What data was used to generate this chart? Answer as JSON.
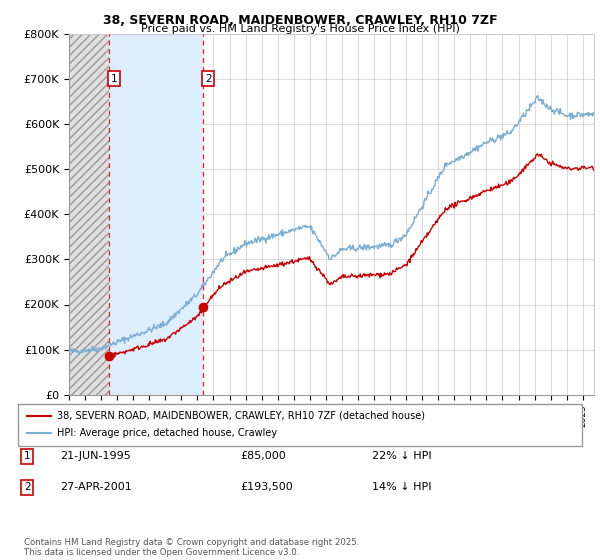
{
  "title1": "38, SEVERN ROAD, MAIDENBOWER, CRAWLEY, RH10 7ZF",
  "title2": "Price paid vs. HM Land Registry's House Price Index (HPI)",
  "legend_line1": "38, SEVERN ROAD, MAIDENBOWER, CRAWLEY, RH10 7ZF (detached house)",
  "legend_line2": "HPI: Average price, detached house, Crawley",
  "annotation1_date": "21-JUN-1995",
  "annotation1_price": "£85,000",
  "annotation1_hpi": "22% ↓ HPI",
  "annotation1_year": 1995.47,
  "annotation1_value": 85000,
  "annotation2_date": "27-APR-2001",
  "annotation2_price": "£193,500",
  "annotation2_hpi": "14% ↓ HPI",
  "annotation2_year": 2001.32,
  "annotation2_value": 193500,
  "red_line_color": "#cc0000",
  "blue_line_color": "#7aaed4",
  "dashed_red": "#ee2222",
  "hatch_facecolor": "#e0e0e0",
  "shade_color": "#ddeeff",
  "footer": "Contains HM Land Registry data © Crown copyright and database right 2025.\nThis data is licensed under the Open Government Licence v3.0.",
  "ylim": [
    0,
    800000
  ],
  "yticks": [
    0,
    100000,
    200000,
    300000,
    400000,
    500000,
    600000,
    700000,
    800000
  ],
  "ytick_labels": [
    "£0",
    "£100K",
    "£200K",
    "£300K",
    "£400K",
    "£500K",
    "£600K",
    "£700K",
    "£800K"
  ],
  "xmin": 1993.0,
  "xmax": 2025.7,
  "xtick_start": 1993,
  "xtick_end": 2025
}
